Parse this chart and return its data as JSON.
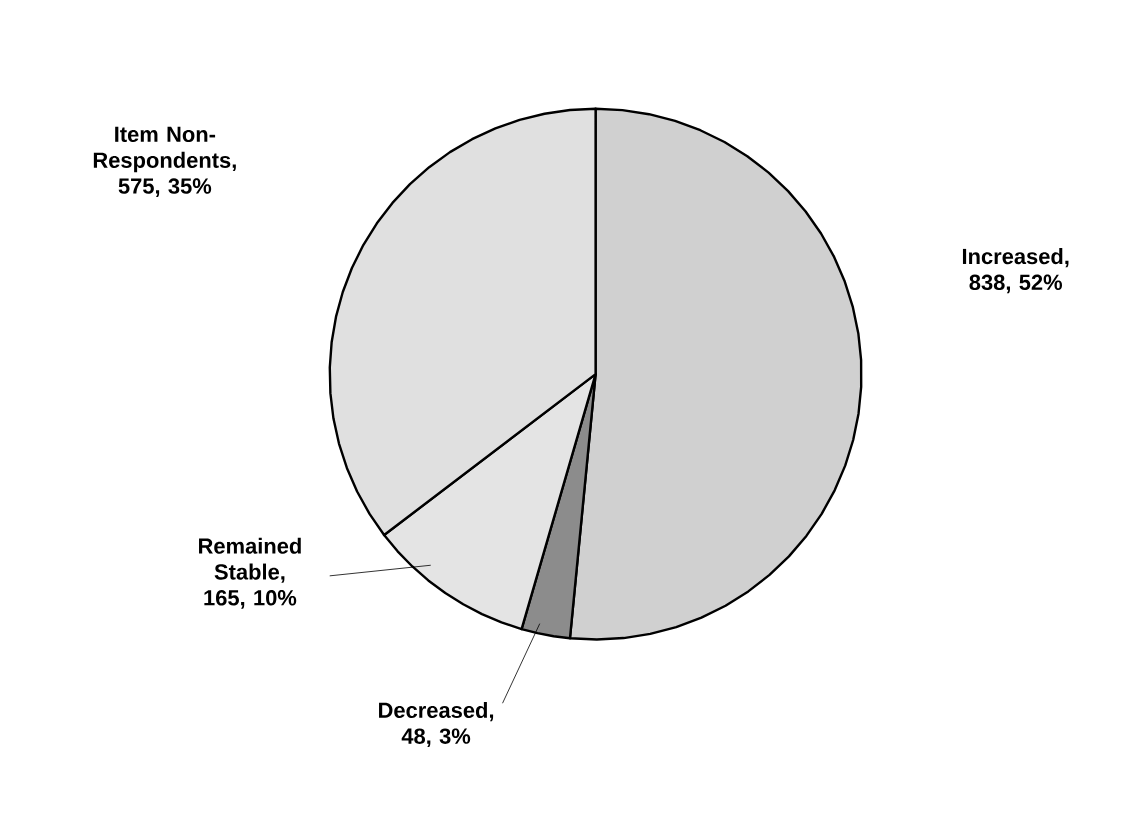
{
  "chart_data": {
    "type": "pie",
    "categories": [
      "Increased",
      "Decreased",
      "Remained Stable",
      "Item Non-Respondents"
    ],
    "values": [
      838,
      48,
      165,
      575
    ],
    "value_labels": [
      ", 838, 52%",
      ", 48, 3%",
      ", 165, 10%",
      ", 575, 35%"
    ],
    "colors": [
      "#d0d0d0",
      "#8c8c8c",
      "#e4e4e4",
      "#e0e0e0"
    ]
  }
}
